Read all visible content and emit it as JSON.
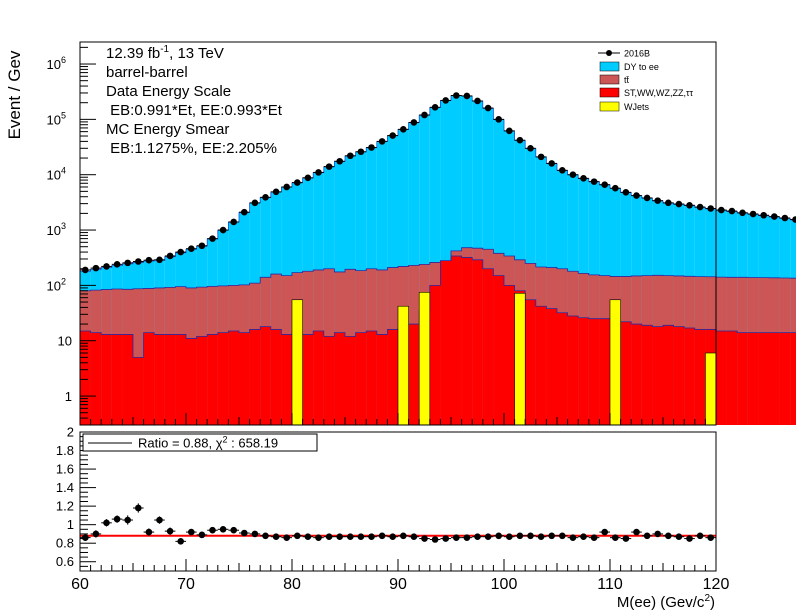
{
  "chart_data": [
    {
      "type": "stacked-histogram",
      "ylabel": "Event / Gev",
      "y_scale": "log",
      "ylim": [
        0.3,
        2500000
      ],
      "xlim": [
        60,
        120
      ],
      "y_tick_labels": [
        {
          "value": 1,
          "label": "1"
        },
        {
          "value": 10,
          "label": "10"
        },
        {
          "value": 100,
          "label": "10",
          "exp": "2"
        },
        {
          "value": 1000,
          "label": "10",
          "exp": "3"
        },
        {
          "value": 10000,
          "label": "10",
          "exp": "4"
        },
        {
          "value": 100000,
          "label": "10",
          "exp": "5"
        },
        {
          "value": 1000000,
          "label": "10",
          "exp": "6"
        }
      ],
      "annotation": {
        "lumi": "12.39 fb",
        "lumi_exp": "-1",
        "lumi_suffix": ", 13 TeV",
        "category": "barrel-barrel",
        "scale_title": "Data Energy Scale",
        "scale_values": " EB:0.991*Et, EE:0.993*Et",
        "smear_title": "MC Energy Smear",
        "smear_values": " EB:1.1275%, EE:2.205%"
      },
      "legend": [
        {
          "name": "2016B",
          "style": "marker",
          "color": "#000000"
        },
        {
          "name": "DY to ee",
          "style": "fill",
          "color": "#00ccff"
        },
        {
          "name": "tt̄",
          "style": "fill",
          "color": "#cc5555"
        },
        {
          "name": "ST,WW,WZ,ZZ,ττ",
          "style": "fill",
          "color": "#ff0000"
        },
        {
          "name": "WJets",
          "style": "fill",
          "color": "#ffff00"
        }
      ],
      "bin_edges_start": 60,
      "bin_width": 1,
      "series": [
        {
          "name": "2016B",
          "values": [
            190,
            205,
            220,
            240,
            255,
            270,
            285,
            290,
            340,
            400,
            460,
            520,
            700,
            1000,
            1400,
            2100,
            3100,
            3900,
            4900,
            6000,
            7200,
            8800,
            11000,
            14000,
            17500,
            22000,
            26000,
            31000,
            40000,
            51000,
            66000,
            88000,
            120000,
            165000,
            220000,
            270000,
            265000,
            215000,
            160000,
            100000,
            62000,
            42000,
            30000,
            21000,
            16000,
            12000,
            10000,
            8600,
            7500,
            6600,
            5700,
            4800,
            4200,
            3800,
            3400,
            3100,
            2950,
            2800,
            2600,
            2450,
            2300,
            2200,
            2050,
            1950,
            1850,
            1750,
            1650,
            1550,
            1480,
            1410
          ]
        },
        {
          "name": "DY to ee",
          "values": [
            180,
            195,
            210,
            228,
            245,
            260,
            275,
            282,
            330,
            390,
            450,
            510,
            690,
            990,
            1390,
            2080,
            3080,
            3870,
            4870,
            5960,
            7150,
            8740,
            10930,
            13900,
            17400,
            21850,
            25850,
            30800,
            39700,
            50600,
            65500,
            87300,
            119000,
            164000,
            219000,
            269000,
            264000,
            214000,
            159000,
            99400,
            61600,
            41700,
            29800,
            20850,
            15900,
            11900,
            9930,
            8550,
            7450,
            6560,
            5670,
            4770,
            4170,
            3770,
            3370,
            3070,
            2920,
            2770,
            2570,
            2420,
            2270,
            2170,
            2020,
            1920,
            1820,
            1720,
            1620,
            1520,
            1450,
            1380
          ]
        },
        {
          "name": "tt̄",
          "values": [
            80,
            82,
            84,
            86,
            85,
            87,
            88,
            90,
            92,
            95,
            90,
            93,
            96,
            98,
            100,
            102,
            110,
            140,
            160,
            150,
            170,
            180,
            190,
            200,
            175,
            195,
            185,
            200,
            190,
            210,
            220,
            230,
            240,
            260,
            270,
            420,
            480,
            470,
            450,
            380,
            340,
            290,
            250,
            215,
            210,
            200,
            180,
            165,
            155,
            150,
            145,
            145,
            148,
            150,
            152,
            150,
            148,
            146,
            144,
            143,
            141,
            140,
            140,
            139,
            138,
            137,
            136,
            135,
            134,
            133
          ]
        },
        {
          "name": "ST,WW,WZ,ZZ,ττ",
          "values": [
            15,
            14,
            13,
            13,
            13,
            5,
            14,
            13,
            13,
            13,
            11,
            12,
            13,
            14,
            15,
            14,
            16,
            18,
            16,
            13,
            14,
            13,
            15,
            12,
            14,
            12,
            14,
            15,
            13,
            16,
            17,
            20,
            35,
            100,
            280,
            340,
            320,
            290,
            200,
            150,
            100,
            80,
            55,
            42,
            38,
            32,
            28,
            26,
            25,
            25,
            24,
            22,
            20,
            19,
            18,
            19,
            18,
            17,
            16,
            16,
            15,
            15,
            14,
            14,
            14,
            14,
            14,
            14,
            13,
            13
          ]
        },
        {
          "name": "WJets",
          "values": [
            0,
            0,
            0,
            0,
            0,
            0,
            0,
            0,
            0,
            0,
            0,
            0,
            0,
            0,
            0,
            0,
            0,
            0,
            0,
            0,
            55,
            0,
            0,
            0,
            0,
            0,
            0,
            0,
            0,
            0,
            42,
            0,
            75,
            0,
            0,
            0,
            0,
            0,
            0,
            0,
            0,
            72,
            0,
            0,
            0,
            0,
            0,
            0,
            0,
            0,
            55,
            0,
            0,
            0,
            0,
            0,
            0,
            0,
            0,
            6,
            0,
            0,
            0,
            0,
            0,
            0,
            0,
            0,
            0,
            0
          ]
        }
      ]
    },
    {
      "type": "scatter",
      "xlabel": "M(ee) (Gev/c",
      "xlabel_exp": "2",
      "xlabel_suffix": ")",
      "xlim": [
        60,
        120
      ],
      "ylim": [
        0.5,
        2.0
      ],
      "x_ticks": [
        60,
        70,
        80,
        90,
        100,
        110,
        120
      ],
      "y_ticks": [
        0.6,
        0.8,
        1,
        1.2,
        1.4,
        1.6,
        1.8,
        2
      ],
      "y_tick_labels": [
        "0.6",
        "0.8",
        "1",
        "1.2",
        "1.4",
        "1.6",
        "1.8",
        "2"
      ],
      "fit_line": {
        "value": 0.88,
        "color": "#ff0000"
      },
      "legend_text": "Ratio = 0.88, χ",
      "legend_exp": "2",
      "legend_suffix": " : 658.19",
      "x": [
        60.5,
        61.5,
        62.5,
        63.5,
        64.5,
        65.5,
        66.5,
        67.5,
        68.5,
        69.5,
        70.5,
        71.5,
        72.5,
        73.5,
        74.5,
        75.5,
        76.5,
        77.5,
        78.5,
        79.5,
        80.5,
        81.5,
        82.5,
        83.5,
        84.5,
        85.5,
        86.5,
        87.5,
        88.5,
        89.5,
        90.5,
        91.5,
        92.5,
        93.5,
        94.5,
        95.5,
        96.5,
        97.5,
        98.5,
        99.5,
        100.5,
        101.5,
        102.5,
        103.5,
        104.5,
        105.5,
        106.5,
        107.5,
        108.5,
        109.5,
        110.5,
        111.5,
        112.5,
        113.5,
        114.5,
        115.5,
        116.5,
        117.5,
        118.5,
        119.5
      ],
      "y": [
        0.86,
        0.9,
        1.02,
        1.06,
        1.05,
        1.18,
        0.92,
        1.05,
        0.93,
        0.82,
        0.92,
        0.89,
        0.94,
        0.95,
        0.94,
        0.91,
        0.9,
        0.88,
        0.87,
        0.86,
        0.88,
        0.87,
        0.86,
        0.87,
        0.87,
        0.87,
        0.87,
        0.87,
        0.88,
        0.87,
        0.88,
        0.87,
        0.85,
        0.84,
        0.85,
        0.86,
        0.86,
        0.87,
        0.87,
        0.88,
        0.87,
        0.88,
        0.88,
        0.87,
        0.88,
        0.88,
        0.86,
        0.87,
        0.86,
        0.92,
        0.86,
        0.85,
        0.92,
        0.88,
        0.9,
        0.88,
        0.87,
        0.85,
        0.88,
        0.86
      ],
      "yerr": [
        0.03,
        0.04,
        0.04,
        0.04,
        0.05,
        0.05,
        0.04,
        0.04,
        0.04,
        0.03,
        0.03,
        0.03,
        0.03,
        0.02,
        0.02,
        0.02,
        0.02,
        0.02,
        0.02,
        0.02,
        0.02,
        0.01,
        0.01,
        0.01,
        0.01,
        0.01,
        0.01,
        0.01,
        0.01,
        0.01,
        0.01,
        0.01,
        0.01,
        0.01,
        0.01,
        0.01,
        0.01,
        0.01,
        0.01,
        0.01,
        0.01,
        0.01,
        0.01,
        0.01,
        0.01,
        0.01,
        0.02,
        0.02,
        0.02,
        0.02,
        0.02,
        0.02,
        0.02,
        0.02,
        0.02,
        0.02,
        0.02,
        0.02,
        0.02,
        0.02
      ]
    }
  ]
}
